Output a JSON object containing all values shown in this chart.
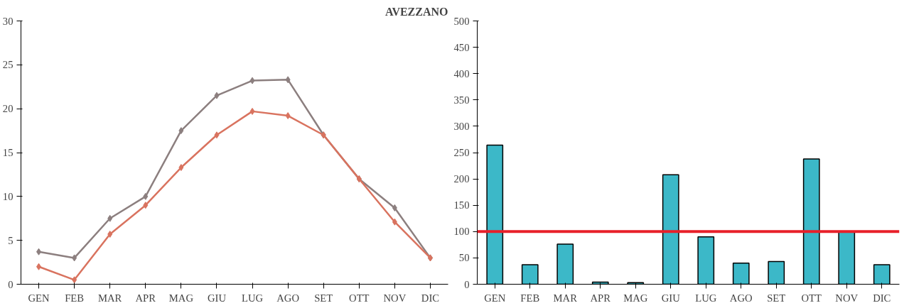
{
  "chart_data": [
    {
      "type": "line",
      "title": "AVEZZANO",
      "categories": [
        "GEN",
        "FEB",
        "MAR",
        "APR",
        "MAG",
        "GIU",
        "LUG",
        "AGO",
        "SET",
        "OTT",
        "NOV",
        "DIC"
      ],
      "marker": "diamond",
      "ylim": [
        0,
        30
      ],
      "yticks": [
        0,
        5,
        10,
        15,
        20,
        25,
        30
      ],
      "series": [
        {
          "color": "#8c7f7f",
          "values": [
            3.7,
            3.0,
            7.5,
            10,
            17.5,
            21.5,
            23.2,
            23.3,
            17,
            12,
            8.7,
            3
          ]
        },
        {
          "color": "#d9735f",
          "values": [
            2,
            0.5,
            5.7,
            9,
            13.3,
            17,
            19.7,
            19.2,
            17,
            12,
            7.1,
            3
          ]
        }
      ]
    },
    {
      "type": "bar",
      "categories": [
        "GEN",
        "FEB",
        "MAR",
        "APR",
        "MAG",
        "GIU",
        "LUG",
        "AGO",
        "SET",
        "OTT",
        "NOV",
        "DIC"
      ],
      "ylim": [
        0,
        500
      ],
      "yticks": [
        0,
        50,
        100,
        150,
        200,
        250,
        300,
        350,
        400,
        450,
        500
      ],
      "series": [
        {
          "color": "#3cb8c8",
          "values": [
            264,
            37,
            76,
            4,
            3,
            208,
            90,
            40,
            43,
            238,
            99,
            37
          ]
        }
      ],
      "ref_lines": [
        {
          "axis": "y",
          "value": 100,
          "color": "#e8202a"
        }
      ]
    }
  ]
}
